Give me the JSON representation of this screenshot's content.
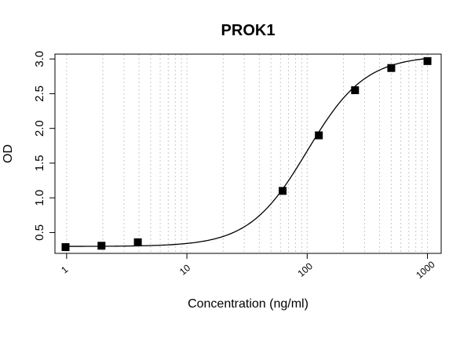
{
  "chart_data": {
    "type": "scatter",
    "title": "PROK1",
    "xlabel": "Concentration (ng/ml)",
    "ylabel": "OD",
    "x_scale": "log",
    "xlim": [
      0.8,
      1300
    ],
    "ylim": [
      0.2,
      3.07
    ],
    "x_ticks": [
      1,
      10,
      100,
      1000
    ],
    "x_tick_labels": [
      "1",
      "10",
      "100",
      "1000"
    ],
    "y_ticks": [
      0.5,
      1.0,
      1.5,
      2.0,
      2.5,
      3.0
    ],
    "y_tick_labels": [
      "0.5",
      "1.0",
      "1.5",
      "2.0",
      "2.5",
      "3.0"
    ],
    "grid": "vertical dotted lines at log minor ticks",
    "legend": "none",
    "series": [
      {
        "points": [
          {
            "x": 0.98,
            "y": 0.29
          },
          {
            "x": 1.95,
            "y": 0.31
          },
          {
            "x": 3.91,
            "y": 0.36
          },
          {
            "x": 62.5,
            "y": 1.1
          },
          {
            "x": 125,
            "y": 1.9
          },
          {
            "x": 250,
            "y": 2.55
          },
          {
            "x": 500,
            "y": 2.87
          },
          {
            "x": 1000,
            "y": 2.97
          }
        ]
      }
    ],
    "fit_curve": {
      "type": "4PL",
      "bottom": 0.3,
      "top": 3.05,
      "ec50": 100,
      "hill": 1.8
    },
    "colors": {
      "marker": "#000000",
      "curve": "#000000",
      "grid": "#c8c8c8"
    }
  }
}
